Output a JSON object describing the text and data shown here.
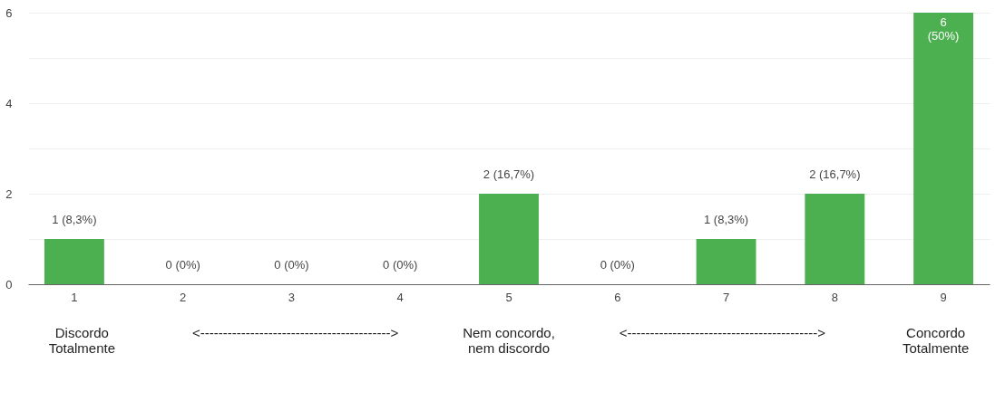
{
  "chart_data": {
    "type": "bar",
    "categories": [
      "1",
      "2",
      "3",
      "4",
      "5",
      "6",
      "7",
      "8",
      "9"
    ],
    "values": [
      1,
      0,
      0,
      0,
      2,
      0,
      1,
      2,
      6
    ],
    "value_labels": [
      "1 (8,3%)",
      "0 (0%)",
      "0 (0%)",
      "0 (0%)",
      "2 (16,7%)",
      "0 (0%)",
      "1 (8,3%)",
      "2 (16,7%)",
      "6\n(50%)"
    ],
    "color": "#4caf50",
    "ylim": [
      0,
      6
    ],
    "yticks": [
      0,
      {
        "value": 1,
        "label": null
      },
      2,
      {
        "value": 3,
        "label": null
      },
      4,
      {
        "value": 5,
        "label": null
      },
      6
    ],
    "grid": "y",
    "annotations": [
      "Discordo\nTotalmente",
      "<------------------------------------------>",
      "Nem concordo,\nnem discordo",
      "<------------------------------------------>",
      "Concordo\nTotalmente"
    ]
  }
}
